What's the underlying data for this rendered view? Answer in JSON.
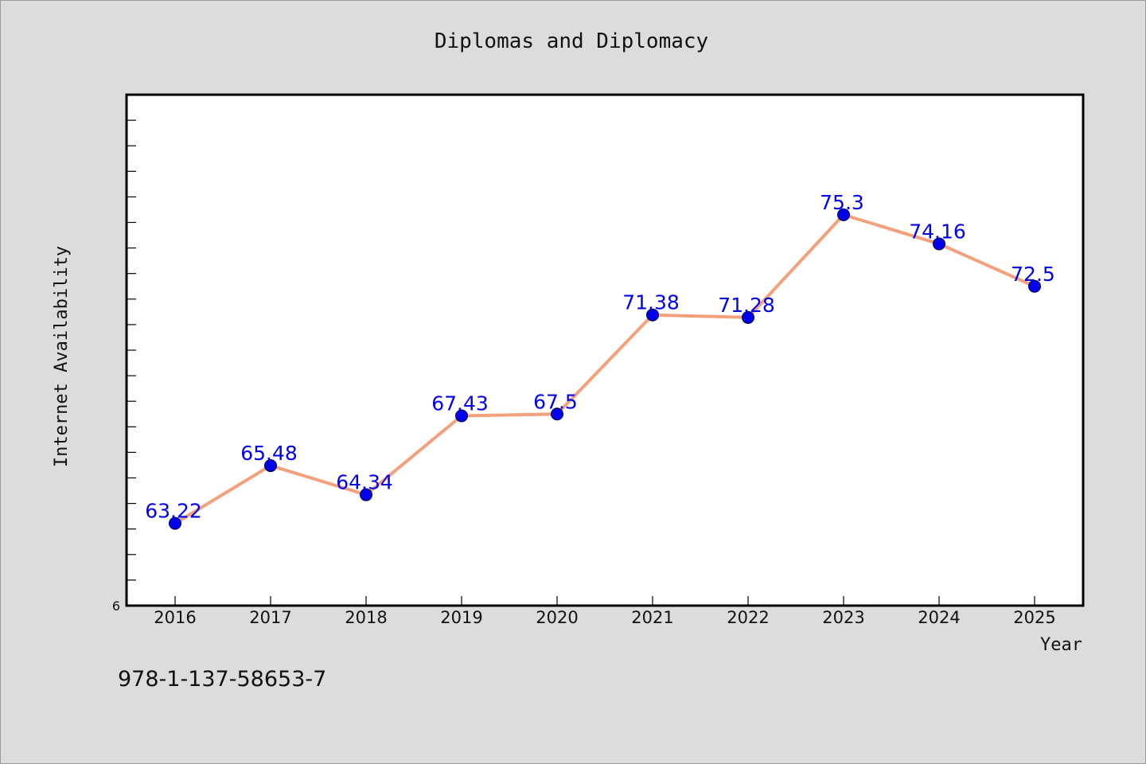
{
  "colors": {
    "line": "#f4a07a",
    "marker": "#0000ee",
    "label": "#0000ee",
    "background": "#dcdcdc",
    "plot_background": "#ffffff"
  },
  "footer": {
    "isbn": "978-1-137-58653-7"
  },
  "chart_data": {
    "type": "line",
    "title": "Diplomas and Diplomacy",
    "xlabel": "Year",
    "ylabel": "Internet Availability",
    "categories": [
      "2016",
      "2017",
      "2018",
      "2019",
      "2020",
      "2021",
      "2022",
      "2023",
      "2024",
      "2025"
    ],
    "series": [
      {
        "values": [
          63.22,
          65.48,
          64.34,
          67.43,
          67.5,
          71.38,
          71.28,
          75.3,
          74.16,
          72.5
        ],
        "labels": [
          "63.22",
          "65.48",
          "64.34",
          "67.43",
          "67.5",
          "71.38",
          "71.28",
          "75.3",
          "74.16",
          "72.5"
        ]
      }
    ],
    "ylim": [
      60,
      80
    ],
    "y_tick_labels": [
      {
        "value": 60,
        "label": "6"
      }
    ],
    "y_minor_tick_step": 1,
    "grid": false,
    "legend": "none"
  }
}
